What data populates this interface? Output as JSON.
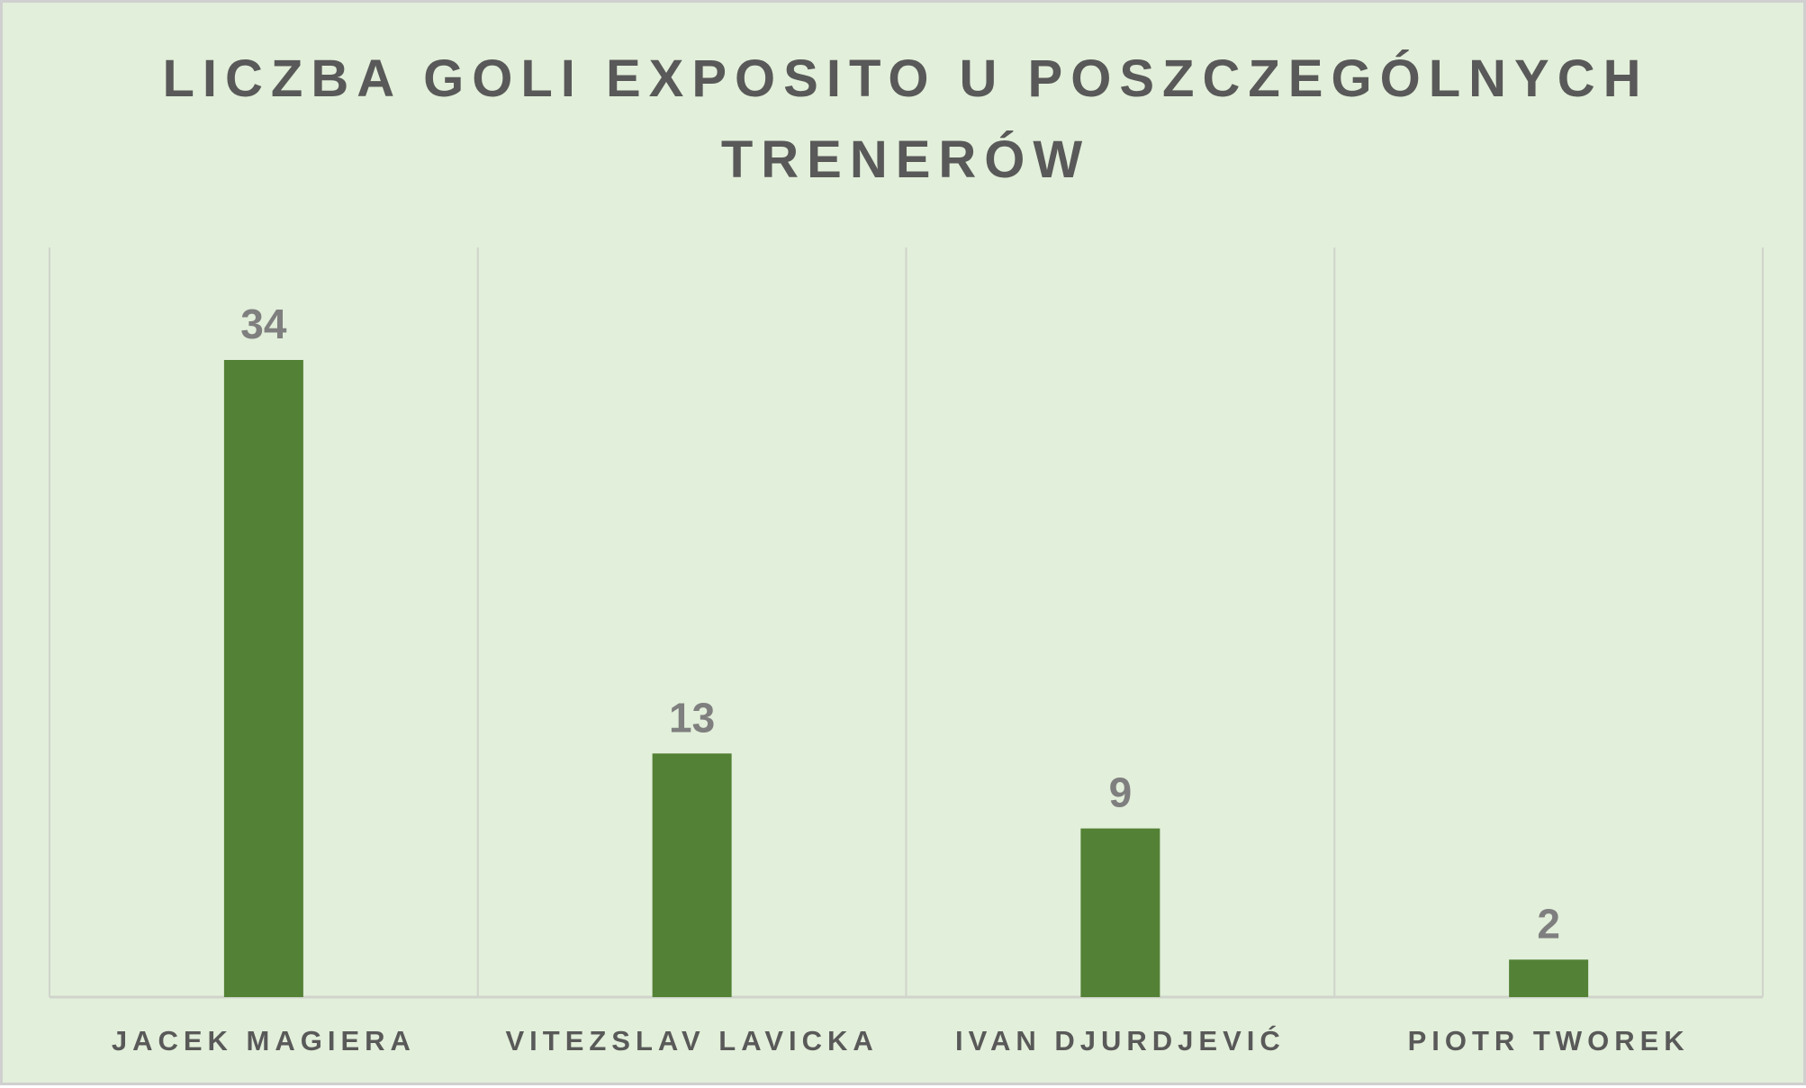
{
  "chart_data": {
    "type": "bar",
    "title_lines": [
      "LICZBA GOLI EXPOSITO U POSZCZEGÓLNYCH",
      "TRENERÓW"
    ],
    "categories": [
      "JACEK MAGIERA",
      "VITEZSLAV LAVICKA",
      "IVAN DJURDJEVIĆ",
      "PIOTR TWOREK"
    ],
    "values": [
      34,
      13,
      9,
      2
    ],
    "data_labels": [
      "34",
      "13",
      "9",
      "2"
    ],
    "ylim": [
      0,
      40
    ],
    "grid": "vertical category separators",
    "legend": "none",
    "colors": {
      "bar": "#538135",
      "background": "#e2efda",
      "gridline": "#d0d4cc",
      "title": "#595959",
      "data_label": "#7f7f7f",
      "tick_label": "#595959"
    }
  }
}
